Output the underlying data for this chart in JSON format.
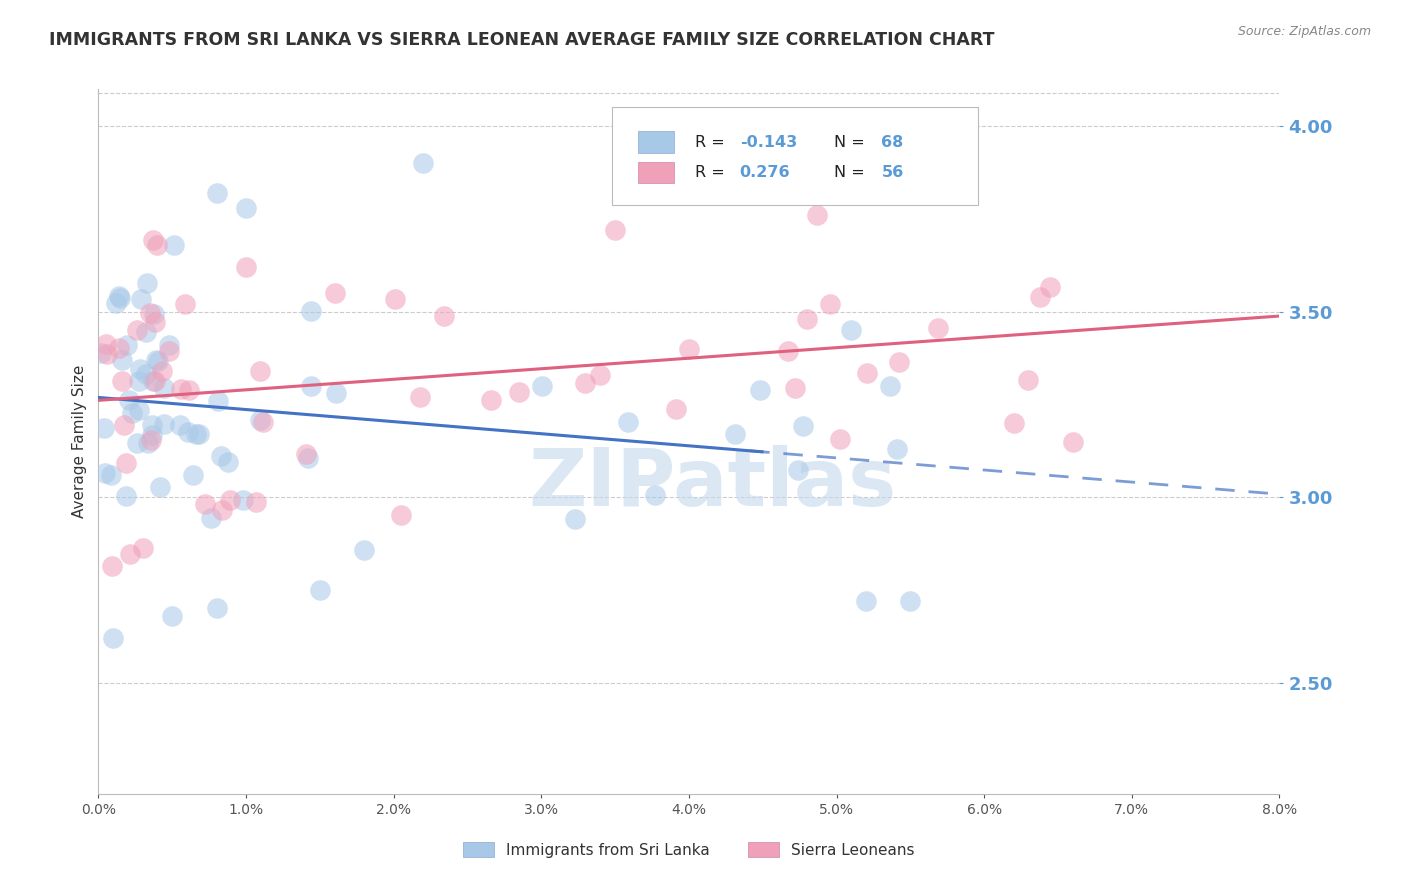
{
  "title": "IMMIGRANTS FROM SRI LANKA VS SIERRA LEONEAN AVERAGE FAMILY SIZE CORRELATION CHART",
  "source": "Source: ZipAtlas.com",
  "ylabel": "Average Family Size",
  "xlim": [
    0.0,
    0.08
  ],
  "ylim": [
    2.2,
    4.1
  ],
  "yticks": [
    2.5,
    3.0,
    3.5,
    4.0
  ],
  "xticks": [
    0.0,
    0.01,
    0.02,
    0.03,
    0.04,
    0.05,
    0.06,
    0.07,
    0.08
  ],
  "xtick_labels": [
    "0.0%",
    "1.0%",
    "2.0%",
    "3.0%",
    "4.0%",
    "5.0%",
    "6.0%",
    "7.0%",
    "8.0%"
  ],
  "series1_color": "#A8C8E8",
  "series1_label": "Immigrants from Sri Lanka",
  "series1_line_color": "#4472C4",
  "series2_color": "#F0A0B8",
  "series2_label": "Sierra Leoneans",
  "series2_line_color": "#E06080",
  "watermark": "ZIPatlas",
  "background_color": "#FFFFFF",
  "grid_color": "#CCCCCC",
  "tick_color": "#5B9BD5",
  "title_fontsize": 12.5,
  "axis_label_fontsize": 11,
  "legend_box_color": "#DDDDDD"
}
